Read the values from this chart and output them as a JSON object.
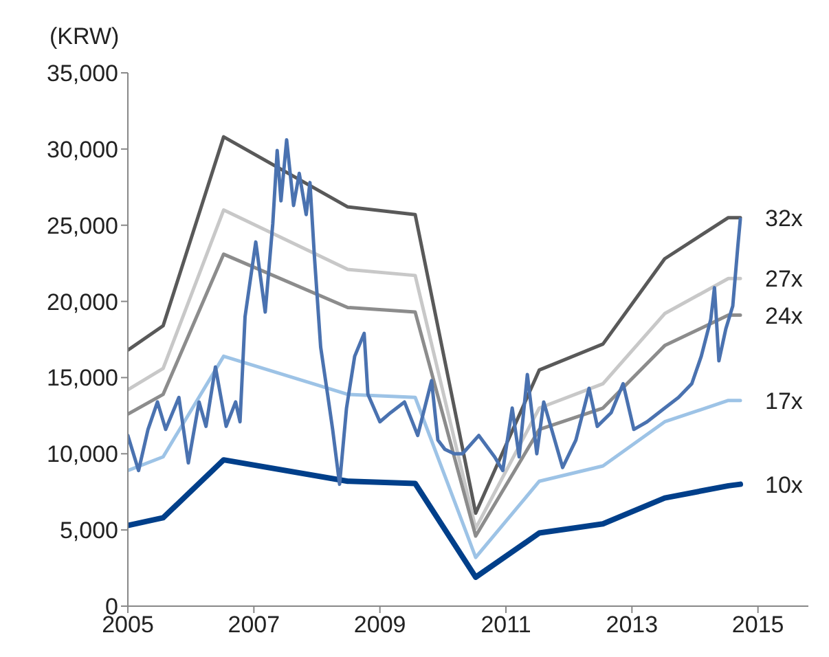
{
  "chart_data": {
    "type": "line",
    "ylabel": "(KRW)",
    "xlim": [
      2005,
      2015.8
    ],
    "xticks": [
      2005,
      2007,
      2009,
      2011,
      2013,
      2015
    ],
    "ylim": [
      0,
      35000
    ],
    "yticks": [
      {
        "value": 0,
        "label": "0"
      },
      {
        "value": 5000,
        "label": "5,000"
      },
      {
        "value": 10000,
        "label": "10,000"
      },
      {
        "value": 15000,
        "label": "15,000"
      },
      {
        "value": 20000,
        "label": "20,000"
      },
      {
        "value": 25000,
        "label": "25,000"
      },
      {
        "value": 30000,
        "label": "30,000"
      },
      {
        "value": 35000,
        "label": "35,000"
      }
    ],
    "grid": false,
    "legend": false,
    "marker": "none",
    "line_style": "solid",
    "series": [
      {
        "name": "32x",
        "color": "#595959",
        "x": [
          2005,
          2005.56,
          2006.52,
          2008.49,
          2009.56,
          2010.52,
          2011.53,
          2012.54,
          2013.52,
          2014.53,
          2014.72
        ],
        "values": [
          16800,
          18400,
          30800,
          26200,
          25700,
          6100,
          15500,
          17200,
          22800,
          25500,
          25500
        ]
      },
      {
        "name": "27x",
        "color": "#c8c8c8",
        "x": [
          2005,
          2005.56,
          2006.52,
          2008.49,
          2009.56,
          2010.52,
          2011.53,
          2012.54,
          2013.52,
          2014.53,
          2014.72
        ],
        "values": [
          14200,
          15600,
          26000,
          22100,
          21700,
          5100,
          13000,
          14600,
          19200,
          21500,
          21500
        ]
      },
      {
        "name": "24x",
        "color": "#8c8c8c",
        "x": [
          2005,
          2005.56,
          2006.52,
          2008.49,
          2009.56,
          2010.52,
          2011.53,
          2012.54,
          2013.52,
          2014.53,
          2014.72
        ],
        "values": [
          12600,
          13900,
          23100,
          19600,
          19300,
          4600,
          11600,
          13000,
          17100,
          19100,
          19100
        ]
      },
      {
        "name": "17x",
        "color": "#9dc3e6",
        "x": [
          2005,
          2005.56,
          2006.52,
          2008.49,
          2009.56,
          2010.52,
          2011.53,
          2012.54,
          2013.52,
          2014.53,
          2014.72
        ],
        "values": [
          8900,
          9800,
          16400,
          13900,
          13700,
          3200,
          8200,
          9200,
          12100,
          13500,
          13500
        ]
      },
      {
        "name": "10x",
        "color": "#003f8a",
        "x": [
          2005,
          2005.56,
          2006.52,
          2008.49,
          2009.56,
          2010.52,
          2011.53,
          2012.54,
          2013.52,
          2014.53,
          2014.72
        ],
        "values": [
          5300,
          5800,
          9600,
          8200,
          8050,
          1900,
          4800,
          5400,
          7100,
          7900,
          8000
        ]
      },
      {
        "color": "#4a72b0",
        "x": [
          2005,
          2005.17,
          2005.32,
          2005.47,
          2005.6,
          2005.81,
          2005.96,
          2006.13,
          2006.24,
          2006.39,
          2006.56,
          2006.71,
          2006.78,
          2006.86,
          2007.03,
          2007.18,
          2007.3,
          2007.37,
          2007.43,
          2007.52,
          2007.63,
          2007.72,
          2007.83,
          2007.89,
          2007.96,
          2008.06,
          2008.17,
          2008.25,
          2008.36,
          2008.47,
          2008.6,
          2008.75,
          2008.81,
          2009.0,
          2009.17,
          2009.39,
          2009.6,
          2009.82,
          2009.92,
          2010.03,
          2010.18,
          2010.31,
          2010.57,
          2010.82,
          2010.95,
          2011.1,
          2011.21,
          2011.34,
          2011.49,
          2011.6,
          2011.9,
          2012.11,
          2012.32,
          2012.45,
          2012.67,
          2012.86,
          2013.03,
          2013.24,
          2013.52,
          2013.74,
          2013.95,
          2014.1,
          2014.25,
          2014.31,
          2014.38,
          2014.49,
          2014.6,
          2014.68,
          2014.72
        ],
        "values": [
          11200,
          8900,
          11600,
          13400,
          11600,
          13700,
          9400,
          13400,
          11800,
          15700,
          11800,
          13400,
          12100,
          19000,
          23900,
          19300,
          25100,
          29900,
          26600,
          30600,
          26300,
          28400,
          25700,
          27800,
          23000,
          17000,
          13900,
          11600,
          8000,
          13000,
          16400,
          17900,
          13900,
          12100,
          12700,
          13400,
          11200,
          14800,
          10900,
          10300,
          10000,
          10000,
          11200,
          9800,
          8900,
          13000,
          9800,
          15200,
          10000,
          13400,
          9100,
          10900,
          14300,
          11800,
          12700,
          14600,
          11600,
          12100,
          13000,
          13700,
          14600,
          16400,
          18800,
          20900,
          16100,
          18200,
          19700,
          23600,
          25400
        ]
      }
    ]
  }
}
